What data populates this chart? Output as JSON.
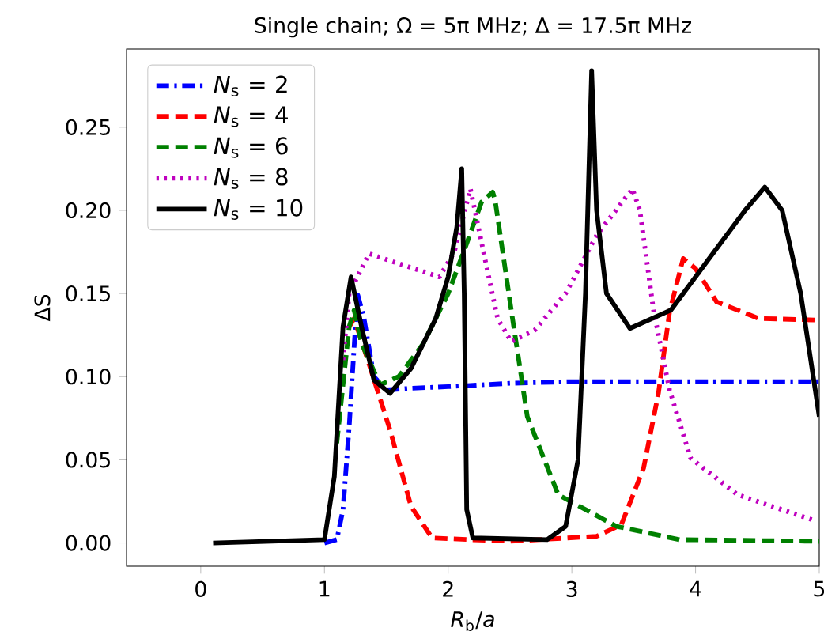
{
  "chart_data": {
    "type": "line",
    "title": "Single chain; Ω = 5π MHz; Δ = 17.5π MHz",
    "xlabel": "*R*$_{b}$/*a*",
    "ylabel": "ΔS",
    "xlim": [
      -0.6,
      5
    ],
    "ylim": [
      -0.014,
      0.297
    ],
    "xticks": [
      0,
      1,
      2,
      3,
      4,
      5
    ],
    "yticks": [
      {
        "value": 0,
        "label": "0.00"
      },
      {
        "value": 0.05,
        "label": "0.05"
      },
      {
        "value": 0.1,
        "label": "0.10"
      },
      {
        "value": 0.15,
        "label": "0.15"
      },
      {
        "value": 0.2,
        "label": "0.20"
      },
      {
        "value": 0.25,
        "label": "0.25"
      }
    ],
    "legend": "top left",
    "grid": false,
    "series": [
      {
        "name": "*N*$_{s}$ = 2",
        "color": "#0000ff",
        "line_style": "dashdot",
        "x": [
          1.0,
          1.1,
          1.15,
          1.2,
          1.25,
          1.27,
          1.32,
          1.4,
          1.5,
          1.7,
          2.0,
          2.5,
          3.0,
          4.0,
          5.0
        ],
        "values": [
          0,
          0.002,
          0.02,
          0.07,
          0.13,
          0.149,
          0.135,
          0.1,
          0.092,
          0.093,
          0.094,
          0.096,
          0.097,
          0.097,
          0.097
        ]
      },
      {
        "name": "*N*$_{s}$ = 4",
        "color": "#ff0000",
        "line_style": "dashed",
        "x": [
          1.2,
          1.24,
          1.35,
          1.53,
          1.7,
          1.87,
          2.5,
          3.2,
          3.4,
          3.58,
          3.7,
          3.79,
          3.9,
          4.0,
          4.17,
          4.51,
          5.0
        ],
        "values": [
          0.13,
          0.135,
          0.11,
          0.068,
          0.022,
          0.003,
          0.001,
          0.004,
          0.011,
          0.045,
          0.09,
          0.139,
          0.171,
          0.165,
          0.145,
          0.135,
          0.134
        ]
      },
      {
        "name": "*N*$_{s}$ = 6",
        "color": "#008000",
        "line_style": "dashed",
        "x": [
          1.1,
          1.2,
          1.24,
          1.3,
          1.45,
          1.6,
          1.8,
          2.0,
          2.15,
          2.27,
          2.36,
          2.38,
          2.51,
          2.64,
          2.89,
          3.36,
          3.87,
          5.0
        ],
        "values": [
          0.06,
          0.13,
          0.14,
          0.12,
          0.095,
          0.1,
          0.12,
          0.15,
          0.18,
          0.205,
          0.211,
          0.206,
          0.14,
          0.076,
          0.029,
          0.01,
          0.002,
          0.001
        ]
      },
      {
        "name": "*N*$_{s}$ = 8",
        "color": "#bf00bf",
        "line_style": "dotted",
        "x": [
          1.15,
          1.2,
          1.36,
          1.6,
          1.93,
          2.05,
          2.18,
          2.3,
          2.4,
          2.51,
          2.7,
          2.95,
          3.2,
          3.49,
          3.55,
          3.66,
          3.79,
          3.96,
          4.34,
          4.94
        ],
        "values": [
          0.11,
          0.15,
          0.174,
          0.168,
          0.16,
          0.175,
          0.213,
          0.17,
          0.135,
          0.121,
          0.128,
          0.15,
          0.185,
          0.213,
          0.2,
          0.14,
          0.092,
          0.051,
          0.029,
          0.014
        ]
      },
      {
        "name": "*N*$_{s}$ = 10",
        "color": "#000000",
        "line_style": "solid",
        "x": [
          0.1,
          1.0,
          1.08,
          1.15,
          1.215,
          1.3,
          1.4,
          1.53,
          1.7,
          1.9,
          2.0,
          2.07,
          2.11,
          2.13,
          2.15,
          2.2,
          2.8,
          2.95,
          3.05,
          3.11,
          3.16,
          3.2,
          3.28,
          3.47,
          3.8,
          4.1,
          4.4,
          4.56,
          4.7,
          4.85,
          5.0
        ],
        "values": [
          0,
          0.002,
          0.04,
          0.13,
          0.16,
          0.13,
          0.098,
          0.09,
          0.105,
          0.135,
          0.16,
          0.19,
          0.225,
          0.15,
          0.02,
          0.003,
          0.002,
          0.01,
          0.05,
          0.15,
          0.284,
          0.2,
          0.15,
          0.129,
          0.14,
          0.17,
          0.2,
          0.214,
          0.2,
          0.15,
          0.076
        ]
      }
    ]
  }
}
